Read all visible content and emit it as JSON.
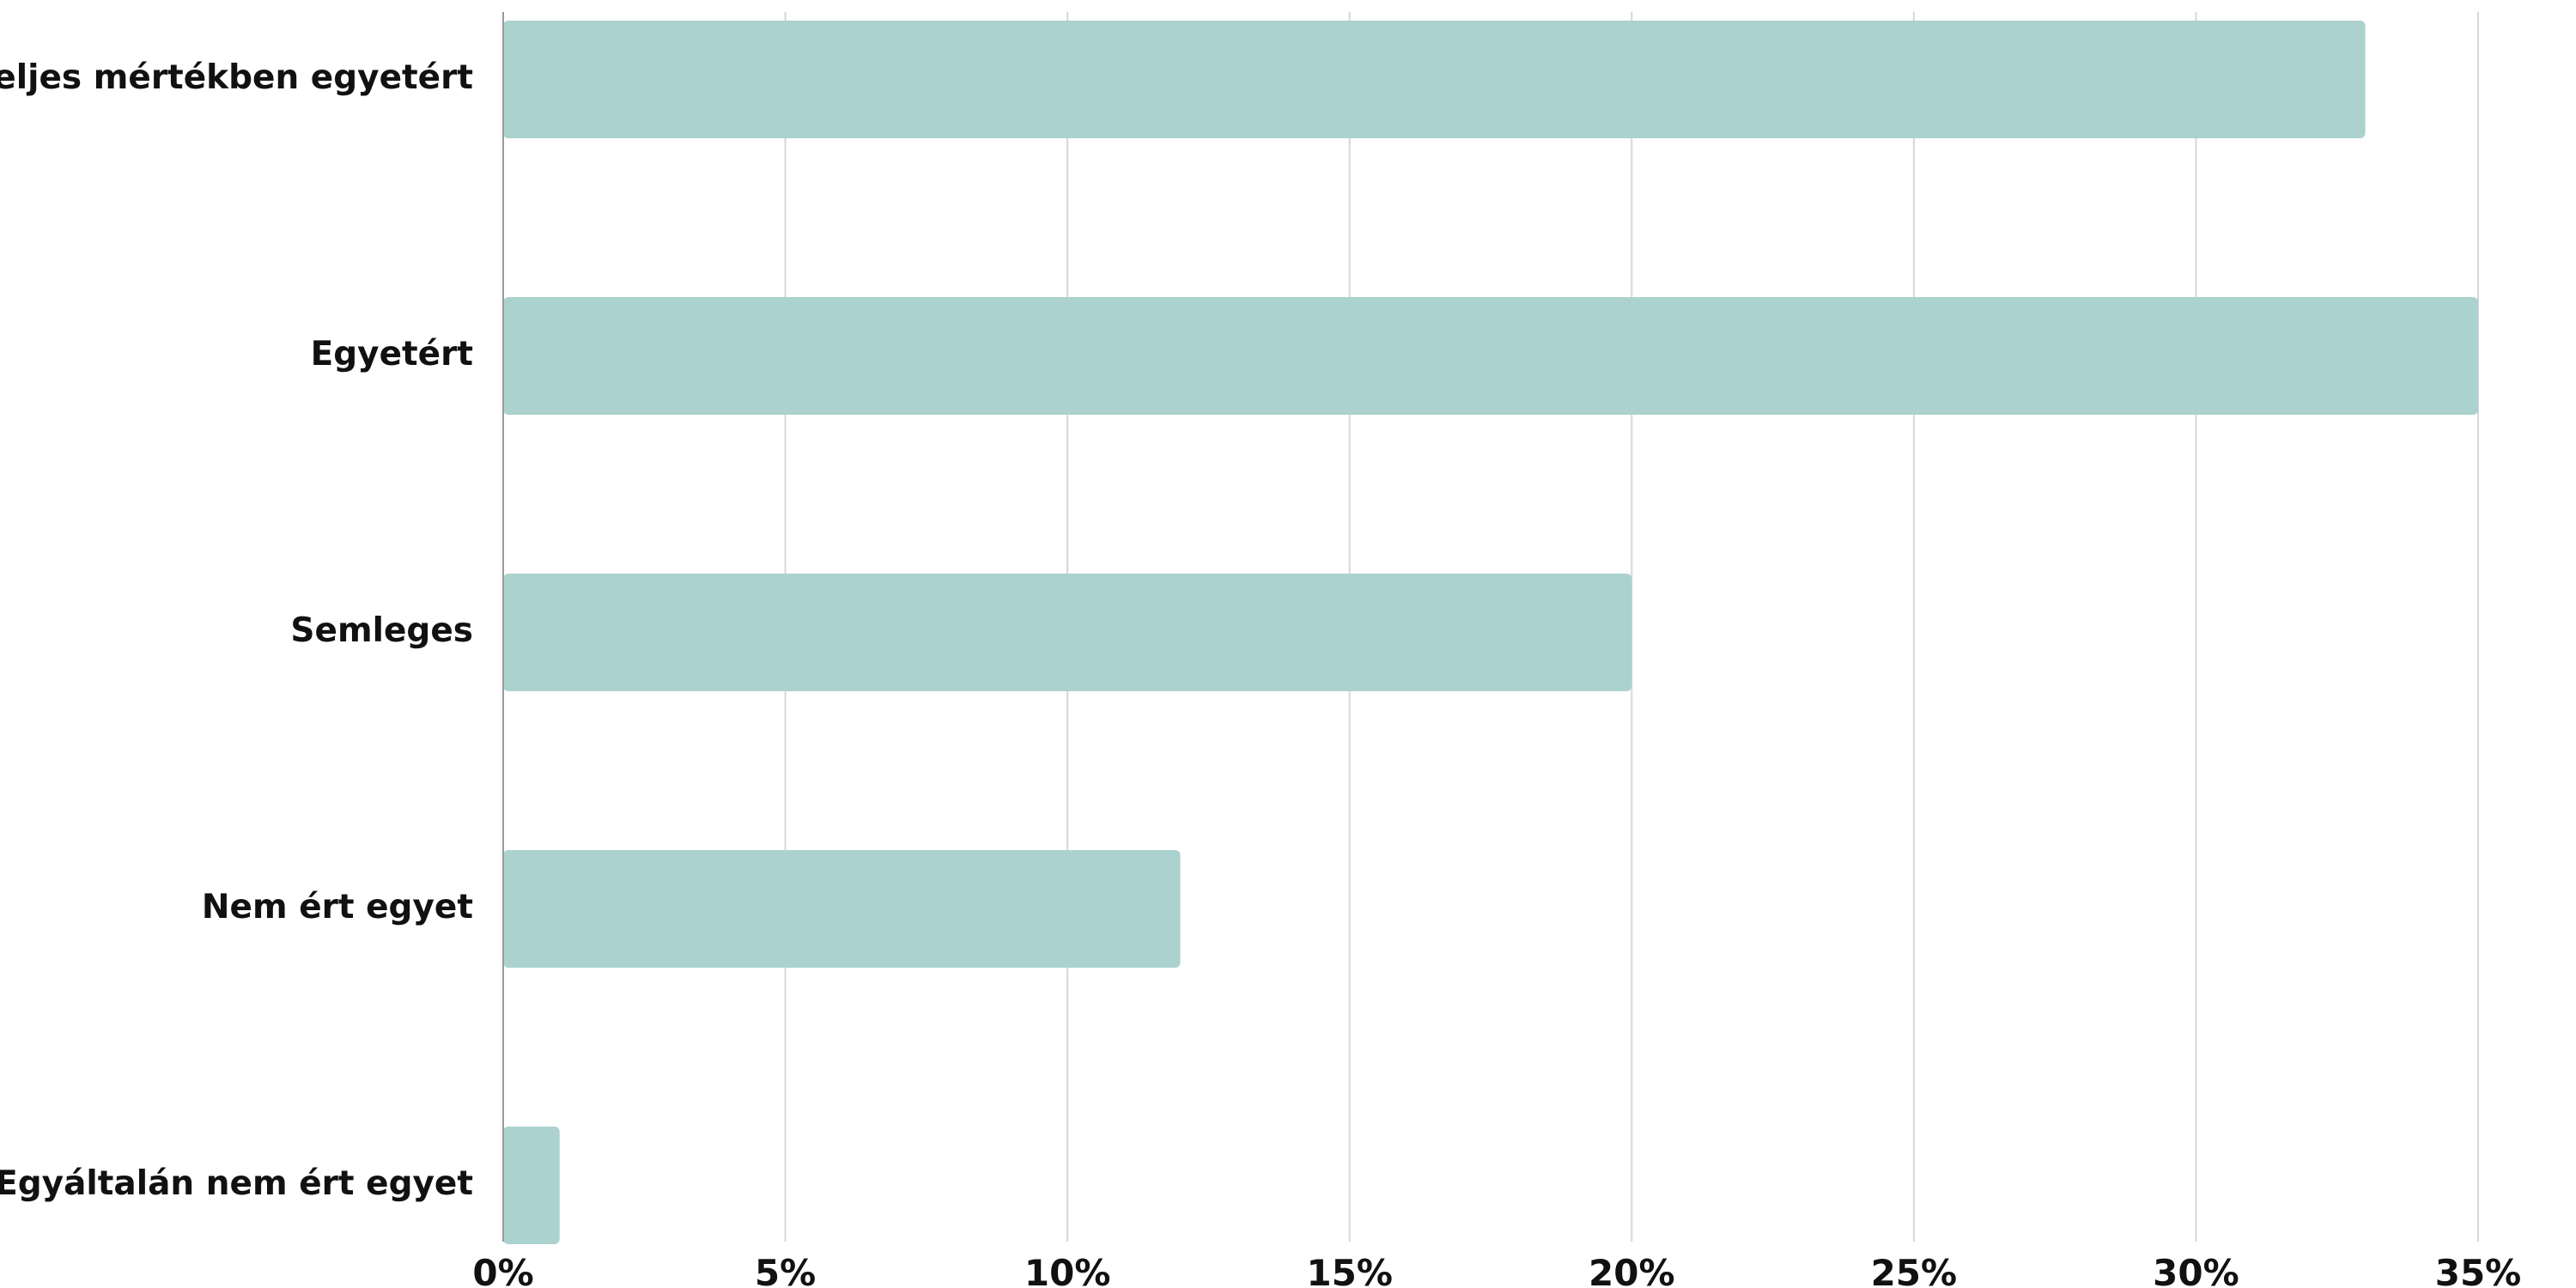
{
  "chart_data": {
    "type": "bar",
    "orientation": "horizontal",
    "title": "",
    "xlabel": "",
    "ylabel": "",
    "categories": [
      "Teljes mértékben egyetért",
      "Egyetért",
      "Semleges",
      "Nem ért egyet",
      "Egyáltalán nem ért egyet"
    ],
    "values": [
      33,
      35,
      20,
      12,
      1
    ],
    "value_unit": "%",
    "xlim": [
      0,
      35
    ],
    "xticks": [
      0,
      5,
      10,
      15,
      20,
      25,
      30,
      35
    ],
    "xtick_labels": [
      "0%",
      "5%",
      "10%",
      "15%",
      "20%",
      "25%",
      "30%",
      "35%"
    ],
    "grid": "vertical",
    "legend": "none",
    "colors": {
      "bar": "#abd2ce",
      "gridline": "#d6d6d6",
      "axis": "#9a9a9a",
      "text": "#111111"
    }
  }
}
